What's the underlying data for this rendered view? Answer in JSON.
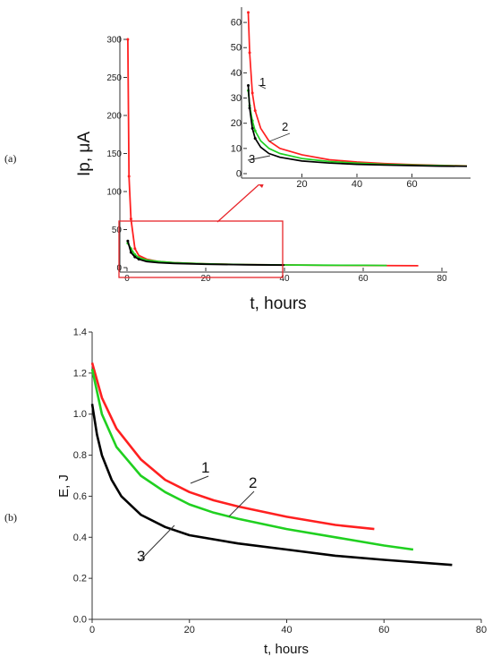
{
  "chart_data": [
    {
      "panel_label": "(a)",
      "type": "line",
      "xlabel": "t, hours",
      "ylabel": "Ip, μA",
      "xlim": [
        0,
        80
      ],
      "ylim": [
        0,
        300
      ],
      "xticks": [
        "0",
        "20",
        "40",
        "60",
        "80"
      ],
      "yticks": [
        "0",
        "50",
        "100",
        "150",
        "200",
        "250",
        "300"
      ],
      "series": [
        {
          "name": "1",
          "color": "#ff2020",
          "x": [
            0.2,
            0.5,
            1,
            2,
            3,
            5,
            8,
            12,
            20,
            30,
            40,
            50,
            60,
            74
          ],
          "y": [
            300,
            120,
            64,
            25,
            16,
            11,
            8,
            6.5,
            5,
            4,
            3.5,
            3,
            2.8,
            2.5
          ]
        },
        {
          "name": "2",
          "color": "#20d020",
          "x": [
            0.2,
            1,
            2,
            3,
            5,
            8,
            12,
            20,
            30,
            40,
            50,
            60,
            66
          ],
          "y": [
            32,
            25,
            17,
            13,
            10,
            8,
            6.5,
            5,
            4,
            3.5,
            3.2,
            3,
            2.8
          ]
        },
        {
          "name": "3",
          "color": "#000000",
          "x": [
            0.2,
            1,
            2,
            3,
            5,
            8,
            12,
            20,
            30,
            40
          ],
          "y": [
            35,
            20,
            14,
            11,
            8,
            6.5,
            5.5,
            4.5,
            3.8,
            3.3
          ]
        }
      ],
      "inset": {
        "xlim": [
          0,
          80
        ],
        "ylim": [
          0,
          65
        ],
        "xticks": [
          "20",
          "40",
          "60"
        ],
        "yticks": [
          "0",
          "10",
          "20",
          "30",
          "40",
          "50",
          "60"
        ],
        "series": [
          {
            "name": "1",
            "color": "#ff2020",
            "x": [
              0.5,
              1,
              2,
              3,
              5,
              8,
              12,
              20,
              30,
              40,
              50,
              60,
              70,
              80
            ],
            "y": [
              64,
              48,
              32,
              25,
              18,
              13,
              10,
              7.5,
              5.5,
              4.6,
              4,
              3.6,
              3.3,
              3.1
            ]
          },
          {
            "name": "2",
            "color": "#20d020",
            "x": [
              0.5,
              1,
              2,
              3,
              5,
              8,
              12,
              20,
              30,
              40,
              50,
              60,
              70,
              80
            ],
            "y": [
              33,
              27,
              21,
              17,
              13,
              10,
              8,
              6,
              4.8,
              4.2,
              3.7,
              3.4,
              3.2,
              3.0
            ]
          },
          {
            "name": "3",
            "color": "#000000",
            "x": [
              0.5,
              1,
              2,
              3,
              5,
              8,
              12,
              20,
              30,
              40,
              50,
              60,
              70,
              80
            ],
            "y": [
              35,
              26,
              18,
              14,
              10.5,
              8,
              6.5,
              5,
              4.2,
              3.7,
              3.4,
              3.2,
              3.0,
              2.9
            ]
          }
        ]
      }
    },
    {
      "panel_label": "(b)",
      "type": "line",
      "xlabel": "t, hours",
      "ylabel": "E, J",
      "xlim": [
        0,
        80
      ],
      "ylim": [
        0.0,
        1.4
      ],
      "xticks": [
        "0",
        "20",
        "40",
        "60",
        "80"
      ],
      "yticks": [
        "0.0",
        "0.2",
        "0.4",
        "0.6",
        "0.8",
        "1.0",
        "1.2",
        "1.4"
      ],
      "series": [
        {
          "name": "1",
          "color": "#ff2020",
          "x": [
            0,
            2,
            5,
            10,
            15,
            20,
            25,
            30,
            40,
            50,
            58
          ],
          "y": [
            1.25,
            1.08,
            0.93,
            0.78,
            0.68,
            0.62,
            0.58,
            0.55,
            0.5,
            0.46,
            0.44
          ]
        },
        {
          "name": "2",
          "color": "#20d020",
          "x": [
            0,
            2,
            5,
            10,
            15,
            20,
            25,
            30,
            40,
            50,
            60,
            66
          ],
          "y": [
            1.22,
            1.0,
            0.84,
            0.7,
            0.62,
            0.56,
            0.52,
            0.49,
            0.44,
            0.4,
            0.36,
            0.34
          ]
        },
        {
          "name": "3",
          "color": "#000000",
          "x": [
            0,
            1,
            2,
            4,
            6,
            10,
            15,
            20,
            30,
            40,
            50,
            60,
            74
          ],
          "y": [
            1.05,
            0.9,
            0.8,
            0.68,
            0.6,
            0.51,
            0.45,
            0.41,
            0.37,
            0.34,
            0.31,
            0.29,
            0.265
          ]
        }
      ]
    }
  ]
}
